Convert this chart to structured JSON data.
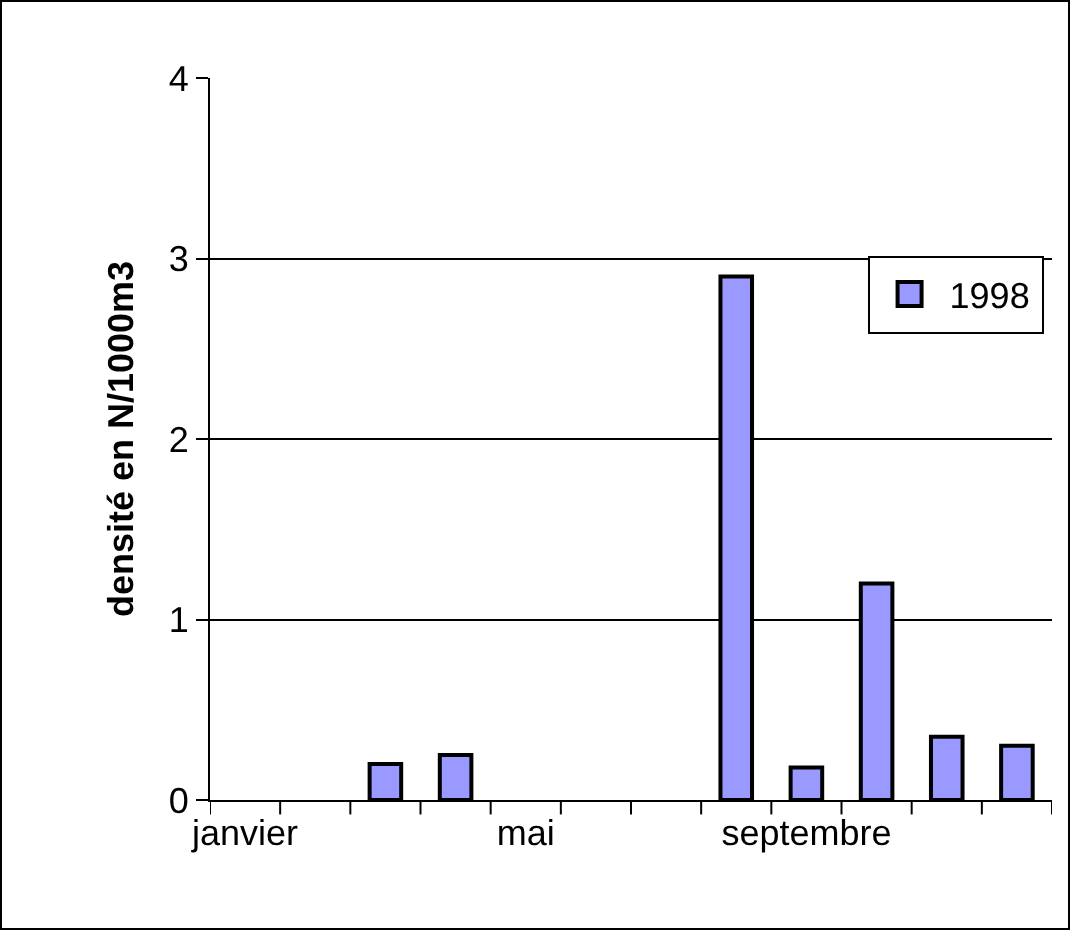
{
  "chart_data": {
    "type": "bar",
    "ylabel": "densité en N/1000m3",
    "categories": [
      "janvier",
      null,
      null,
      null,
      "mai",
      null,
      null,
      null,
      "septembre",
      null,
      null,
      null
    ],
    "series": [
      {
        "name": "1998",
        "color": "#9999ff",
        "values": [
          null,
          null,
          0.2,
          0.25,
          null,
          null,
          null,
          2.9,
          0.18,
          1.2,
          0.35,
          0.3
        ]
      }
    ],
    "ylim": [
      0,
      4
    ],
    "yticks": [
      0,
      1,
      2,
      3,
      4
    ],
    "grid": "y",
    "legend": "right"
  }
}
